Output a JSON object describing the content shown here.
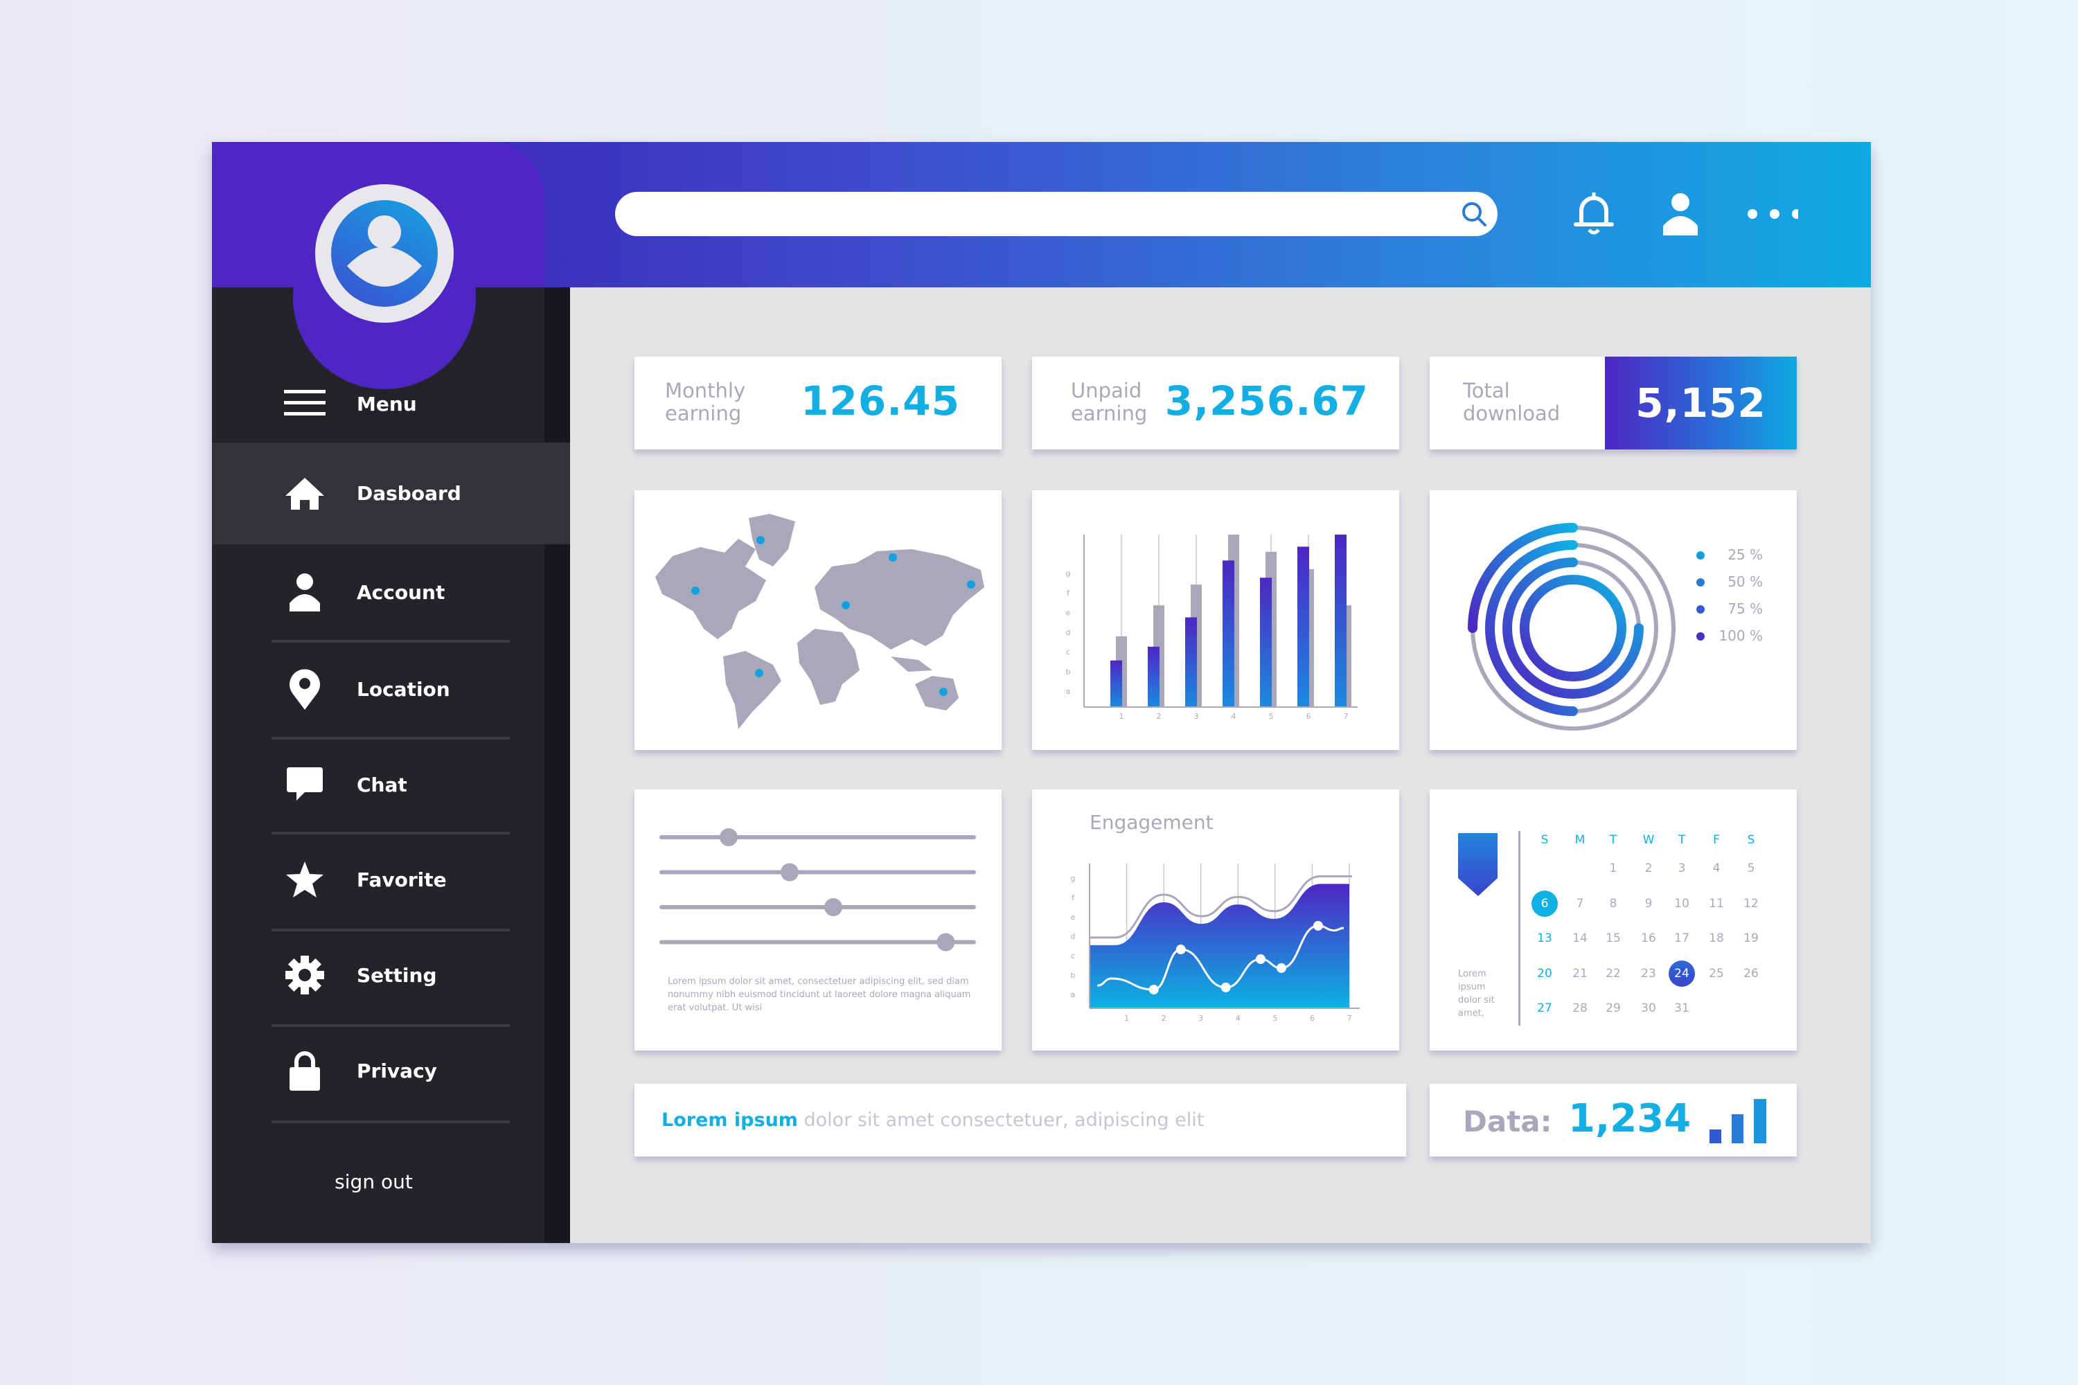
{
  "header": {
    "search_placeholder": "",
    "icons": [
      "search-icon",
      "bell-icon",
      "user-icon",
      "more-icon"
    ]
  },
  "sidebar": {
    "menu_label": "Menu",
    "items": [
      {
        "label": "Dasboard",
        "icon": "home-icon",
        "active": true
      },
      {
        "label": "Account",
        "icon": "user-icon"
      },
      {
        "label": "Location",
        "icon": "location-pin-icon"
      },
      {
        "label": "Chat",
        "icon": "chat-icon"
      },
      {
        "label": "Favorite",
        "icon": "star-icon"
      },
      {
        "label": "Setting",
        "icon": "gear-icon"
      },
      {
        "label": "Privacy",
        "icon": "lock-icon"
      }
    ],
    "sign_out": "sign out"
  },
  "stats": [
    {
      "label_1": "Monthly",
      "label_2": "earning",
      "value": "126.45"
    },
    {
      "label_1": "Unpaid",
      "label_2": "earning",
      "value": "3,256.67"
    },
    {
      "label_1": "Total",
      "label_2": "download",
      "value": "5,152"
    }
  ],
  "colors": {
    "purple": "#4e26c4",
    "blue": "#2f6ad6",
    "cyan": "#0fb0e2",
    "gray": "#a9a8bb",
    "dark": "#232429"
  },
  "sliders": {
    "values": [
      0.215,
      0.41,
      0.55,
      0.91
    ],
    "text": "Lorem ipsum dolor sit amet, consectetuer adipiscing elit, sed diam nonummy nibh euismod tincidunt ut laoreet dolore magna aliquam erat volutpat. Ut wisi"
  },
  "calendar": {
    "weekdays": [
      "S",
      "M",
      "T",
      "W",
      "T",
      "F",
      "S"
    ],
    "first_weekday": 2,
    "days": 31,
    "highlight_cyan": 6,
    "highlight_blue": 24,
    "note": "Lorem ipsum dolor sit amet,"
  },
  "footer": {
    "lead": "Lorem ipsum",
    "rest": " dolor sit amet consectetuer, adipiscing elit",
    "data_label": "Data:",
    "data_value": "1,234"
  },
  "chart_data": [
    {
      "type": "bar",
      "categories": [
        "1",
        "2",
        "3",
        "4",
        "5",
        "6",
        "7"
      ],
      "y_tick_labels": [
        "a",
        "b",
        "c",
        "d",
        "e",
        "f",
        "g"
      ],
      "series": [
        {
          "values": [
            27,
            35,
            52,
            85,
            75,
            93,
            100
          ],
          "color": "gradient-blue"
        },
        {
          "values": [
            41,
            59,
            71,
            100,
            90,
            80,
            59
          ],
          "color": "#a9a8bb"
        }
      ],
      "ylim": [
        0,
        100
      ],
      "grid": "vertical"
    },
    {
      "type": "pie",
      "variant": "concentric-rings",
      "legend": [
        "25 %",
        "50 %",
        "75 %",
        "100 %"
      ],
      "values": [
        25,
        50,
        75,
        100
      ],
      "legend_colors": [
        "#14a0e0",
        "#2a7ad8",
        "#3656d2",
        "#4a2ec6"
      ],
      "legend_position": "right"
    },
    {
      "type": "area",
      "title": "Engagement",
      "x_tick_labels": [
        "1",
        "2",
        "3",
        "4",
        "5",
        "6",
        "7"
      ],
      "y_tick_labels": [
        "a",
        "b",
        "c",
        "d",
        "e",
        "f",
        "g"
      ],
      "xlim": [
        0,
        7
      ],
      "ylim": [
        0,
        7.7
      ],
      "area": {
        "x": [
          0,
          0.68,
          2.0,
          3.02,
          4.0,
          4.98,
          6.23,
          7.0
        ],
        "y": [
          3.54,
          3.54,
          5.75,
          4.64,
          5.64,
          4.9,
          6.7,
          6.7
        ]
      },
      "line": {
        "x": [
          0.21,
          0.59,
          1.73,
          2.46,
          3.67,
          4.61,
          5.17,
          6.16,
          6.6,
          6.85
        ],
        "y": [
          1.46,
          1.82,
          1.25,
          3.32,
          1.36,
          2.82,
          2.36,
          4.54,
          4.3,
          4.43
        ]
      },
      "markers": [
        2,
        3,
        4,
        5,
        6,
        7
      ],
      "grid": "vertical"
    }
  ]
}
